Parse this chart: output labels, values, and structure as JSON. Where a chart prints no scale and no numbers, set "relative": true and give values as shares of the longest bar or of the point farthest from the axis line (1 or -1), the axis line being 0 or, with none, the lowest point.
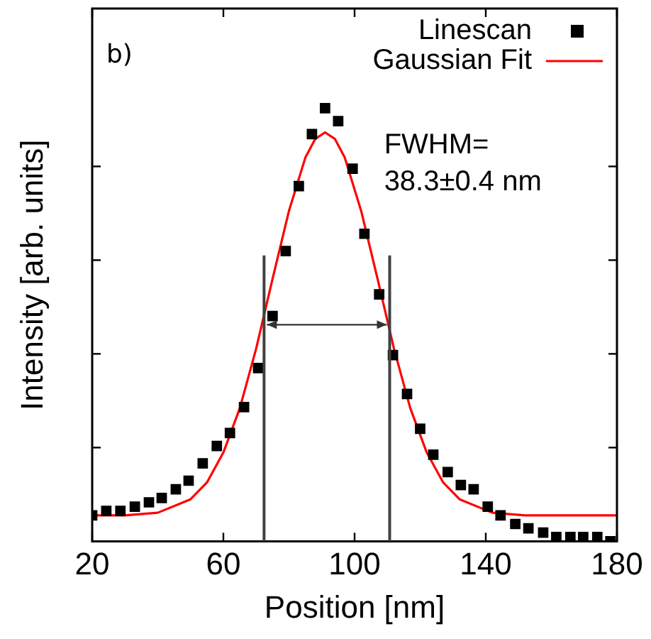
{
  "chart_data": {
    "type": "scatter",
    "relative": true,
    "xlabel": "Position [nm]",
    "ylabel": "Intensity [arb. units]",
    "xlim": [
      20,
      180
    ],
    "xticks": [
      20,
      60,
      100,
      140,
      180
    ],
    "grid": false,
    "legend": "top right",
    "series": [
      {
        "name": "Linescan",
        "type": "scatter",
        "marker": "square",
        "color": "#000000",
        "x": [
          20,
          24.3,
          28.6,
          33,
          37.3,
          41.2,
          45.5,
          49.4,
          53.7,
          58,
          62,
          66.3,
          70.6,
          75,
          79,
          83,
          87,
          91,
          95,
          99.4,
          103,
          107.5,
          111.7,
          116,
          120,
          124,
          128.4,
          132.4,
          136.3,
          140.6,
          144.5,
          149,
          153,
          157.5,
          161.5,
          165.8,
          169.7,
          174,
          178
        ],
        "values": [
          0.06,
          0.07,
          0.07,
          0.08,
          0.09,
          0.1,
          0.12,
          0.14,
          0.18,
          0.22,
          0.25,
          0.31,
          0.4,
          0.52,
          0.67,
          0.82,
          0.94,
          1,
          0.97,
          0.86,
          0.71,
          0.57,
          0.43,
          0.34,
          0.26,
          0.2,
          0.16,
          0.13,
          0.12,
          0.08,
          0.06,
          0.04,
          0.03,
          0.02,
          0.01,
          0.01,
          0.01,
          0.01,
          0.0
        ]
      },
      {
        "name": "Gaussian Fit",
        "type": "line",
        "marker": "none",
        "color": "#ff0000",
        "line_style": "solid",
        "x": [
          20,
          30,
          40,
          50,
          55,
          60,
          65,
          70,
          75,
          80,
          85,
          88,
          91,
          94,
          97,
          102,
          107,
          112,
          117,
          122,
          127,
          132,
          142,
          152,
          180
        ],
        "values": [
          0.06,
          0.06,
          0.066,
          0.097,
          0.136,
          0.205,
          0.307,
          0.445,
          0.606,
          0.763,
          0.886,
          0.929,
          0.944,
          0.929,
          0.886,
          0.763,
          0.606,
          0.445,
          0.307,
          0.205,
          0.136,
          0.097,
          0.066,
          0.06,
          0.06
        ]
      }
    ],
    "ref_lines": [
      {
        "axis": "x",
        "value": 72.4,
        "color": "#404040"
      },
      {
        "axis": "x",
        "value": 110.7,
        "color": "#404040"
      }
    ],
    "annotations": [
      "b)",
      "FWHM=\n38.3±0.4 nm"
    ]
  }
}
